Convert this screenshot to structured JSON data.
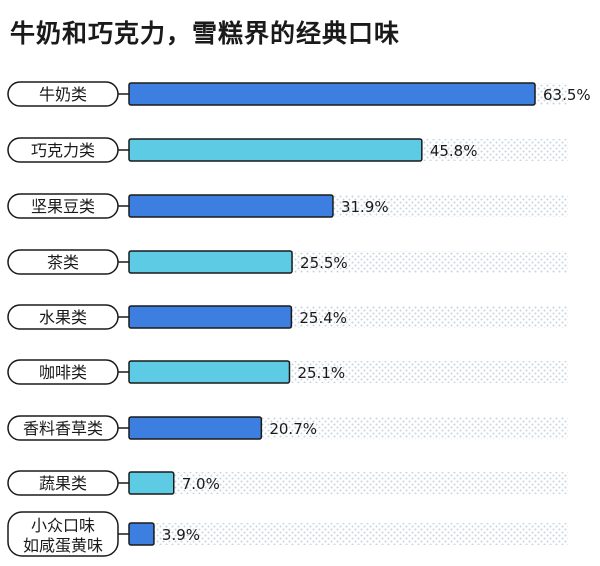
{
  "title": "牛奶和巧克力，雪糕界的经典口味",
  "colors": {
    "dark_bar": "#3c7fe0",
    "light_bar": "#5dcbe3",
    "outline": "#1a1a1a",
    "dots": "#c7d4de"
  },
  "chart_data": {
    "type": "bar",
    "orientation": "horizontal",
    "title": "牛奶和巧克力，雪糕界的经典口味",
    "xlabel": "",
    "ylabel": "",
    "xlim": [
      0,
      63.5
    ],
    "grid": false,
    "categories": [
      [
        "牛奶类"
      ],
      [
        "巧克力类"
      ],
      [
        "坚果豆类"
      ],
      [
        "茶类"
      ],
      [
        "水果类"
      ],
      [
        "咖啡类"
      ],
      [
        "香料香草类"
      ],
      [
        "蔬果类"
      ],
      [
        "小众口味",
        "如咸蛋黄味"
      ]
    ],
    "values": [
      63.5,
      45.8,
      31.9,
      25.5,
      25.4,
      25.1,
      20.7,
      7.0,
      3.9
    ],
    "value_labels": [
      "63.5%",
      "45.8%",
      "31.9%",
      "25.5%",
      "25.4%",
      "25.1%",
      "20.7%",
      "7.0%",
      "3.9%"
    ],
    "bar_colors": [
      "dark",
      "light",
      "dark",
      "light",
      "dark",
      "light",
      "dark",
      "light",
      "dark"
    ]
  }
}
